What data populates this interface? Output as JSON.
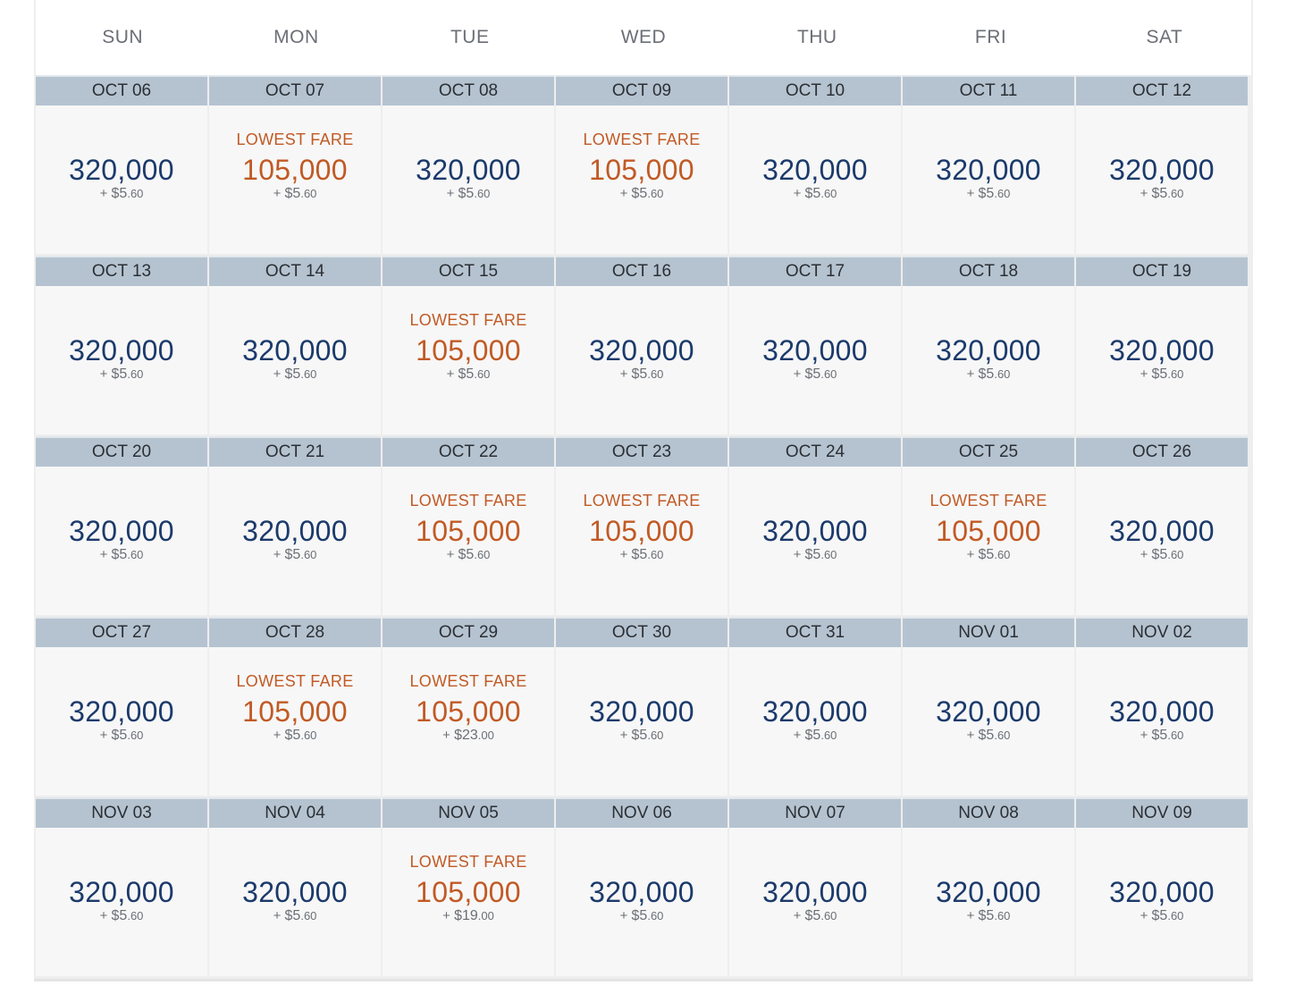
{
  "weekdays": [
    "SUN",
    "MON",
    "TUE",
    "WED",
    "THU",
    "FRI",
    "SAT"
  ],
  "lowest_label": "LOWEST FARE",
  "tax_prefix": "+ ",
  "colors": {
    "standard_fare": "#1b3a6b",
    "lowest_fare": "#c15a25",
    "date_bar": "#b5c3d0"
  },
  "days": [
    {
      "date": "OCT 06",
      "miles": "320,000",
      "tax_dollars": "$5",
      "tax_cents": ".60",
      "lowest": false
    },
    {
      "date": "OCT 07",
      "miles": "105,000",
      "tax_dollars": "$5",
      "tax_cents": ".60",
      "lowest": true
    },
    {
      "date": "OCT 08",
      "miles": "320,000",
      "tax_dollars": "$5",
      "tax_cents": ".60",
      "lowest": false
    },
    {
      "date": "OCT 09",
      "miles": "105,000",
      "tax_dollars": "$5",
      "tax_cents": ".60",
      "lowest": true
    },
    {
      "date": "OCT 10",
      "miles": "320,000",
      "tax_dollars": "$5",
      "tax_cents": ".60",
      "lowest": false
    },
    {
      "date": "OCT 11",
      "miles": "320,000",
      "tax_dollars": "$5",
      "tax_cents": ".60",
      "lowest": false
    },
    {
      "date": "OCT 12",
      "miles": "320,000",
      "tax_dollars": "$5",
      "tax_cents": ".60",
      "lowest": false
    },
    {
      "date": "OCT 13",
      "miles": "320,000",
      "tax_dollars": "$5",
      "tax_cents": ".60",
      "lowest": false
    },
    {
      "date": "OCT 14",
      "miles": "320,000",
      "tax_dollars": "$5",
      "tax_cents": ".60",
      "lowest": false
    },
    {
      "date": "OCT 15",
      "miles": "105,000",
      "tax_dollars": "$5",
      "tax_cents": ".60",
      "lowest": true
    },
    {
      "date": "OCT 16",
      "miles": "320,000",
      "tax_dollars": "$5",
      "tax_cents": ".60",
      "lowest": false
    },
    {
      "date": "OCT 17",
      "miles": "320,000",
      "tax_dollars": "$5",
      "tax_cents": ".60",
      "lowest": false
    },
    {
      "date": "OCT 18",
      "miles": "320,000",
      "tax_dollars": "$5",
      "tax_cents": ".60",
      "lowest": false
    },
    {
      "date": "OCT 19",
      "miles": "320,000",
      "tax_dollars": "$5",
      "tax_cents": ".60",
      "lowest": false
    },
    {
      "date": "OCT 20",
      "miles": "320,000",
      "tax_dollars": "$5",
      "tax_cents": ".60",
      "lowest": false
    },
    {
      "date": "OCT 21",
      "miles": "320,000",
      "tax_dollars": "$5",
      "tax_cents": ".60",
      "lowest": false
    },
    {
      "date": "OCT 22",
      "miles": "105,000",
      "tax_dollars": "$5",
      "tax_cents": ".60",
      "lowest": true
    },
    {
      "date": "OCT 23",
      "miles": "105,000",
      "tax_dollars": "$5",
      "tax_cents": ".60",
      "lowest": true
    },
    {
      "date": "OCT 24",
      "miles": "320,000",
      "tax_dollars": "$5",
      "tax_cents": ".60",
      "lowest": false
    },
    {
      "date": "OCT 25",
      "miles": "105,000",
      "tax_dollars": "$5",
      "tax_cents": ".60",
      "lowest": true
    },
    {
      "date": "OCT 26",
      "miles": "320,000",
      "tax_dollars": "$5",
      "tax_cents": ".60",
      "lowest": false
    },
    {
      "date": "OCT 27",
      "miles": "320,000",
      "tax_dollars": "$5",
      "tax_cents": ".60",
      "lowest": false
    },
    {
      "date": "OCT 28",
      "miles": "105,000",
      "tax_dollars": "$5",
      "tax_cents": ".60",
      "lowest": true
    },
    {
      "date": "OCT 29",
      "miles": "105,000",
      "tax_dollars": "$23",
      "tax_cents": ".00",
      "lowest": true
    },
    {
      "date": "OCT 30",
      "miles": "320,000",
      "tax_dollars": "$5",
      "tax_cents": ".60",
      "lowest": false
    },
    {
      "date": "OCT 31",
      "miles": "320,000",
      "tax_dollars": "$5",
      "tax_cents": ".60",
      "lowest": false
    },
    {
      "date": "NOV 01",
      "miles": "320,000",
      "tax_dollars": "$5",
      "tax_cents": ".60",
      "lowest": false
    },
    {
      "date": "NOV 02",
      "miles": "320,000",
      "tax_dollars": "$5",
      "tax_cents": ".60",
      "lowest": false
    },
    {
      "date": "NOV 03",
      "miles": "320,000",
      "tax_dollars": "$5",
      "tax_cents": ".60",
      "lowest": false
    },
    {
      "date": "NOV 04",
      "miles": "320,000",
      "tax_dollars": "$5",
      "tax_cents": ".60",
      "lowest": false
    },
    {
      "date": "NOV 05",
      "miles": "105,000",
      "tax_dollars": "$19",
      "tax_cents": ".00",
      "lowest": true
    },
    {
      "date": "NOV 06",
      "miles": "320,000",
      "tax_dollars": "$5",
      "tax_cents": ".60",
      "lowest": false
    },
    {
      "date": "NOV 07",
      "miles": "320,000",
      "tax_dollars": "$5",
      "tax_cents": ".60",
      "lowest": false
    },
    {
      "date": "NOV 08",
      "miles": "320,000",
      "tax_dollars": "$5",
      "tax_cents": ".60",
      "lowest": false
    },
    {
      "date": "NOV 09",
      "miles": "320,000",
      "tax_dollars": "$5",
      "tax_cents": ".60",
      "lowest": false
    }
  ]
}
